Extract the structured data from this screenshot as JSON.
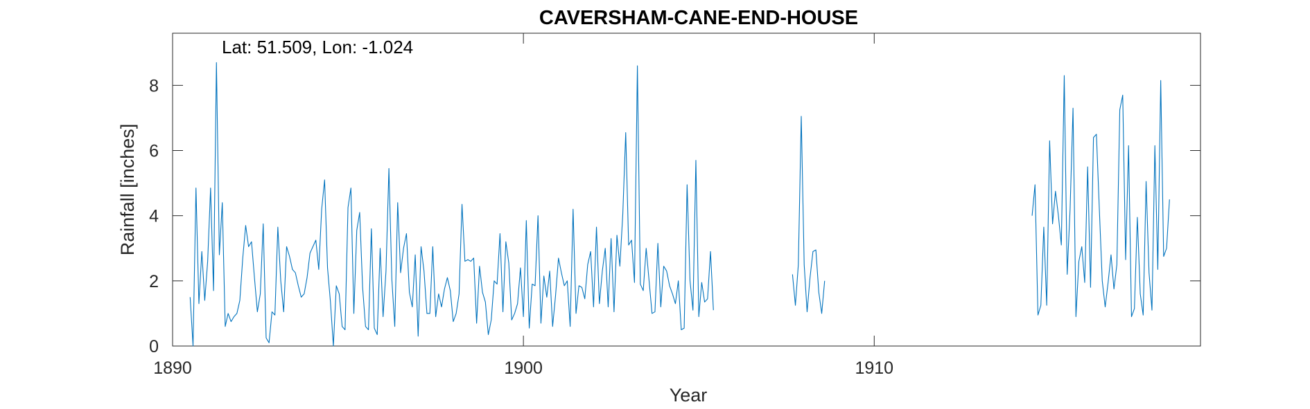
{
  "chart_data": {
    "type": "line",
    "title": "CAVERSHAM-CANE-END-HOUSE",
    "annotation": "Lat: 51.509, Lon: -1.024",
    "xlabel": "Year",
    "ylabel": "Rainfall [inches]",
    "xlim": [
      1890,
      1919.3
    ],
    "ylim": [
      0,
      9.6
    ],
    "xticks": [
      1890,
      1900,
      1910
    ],
    "yticks": [
      0,
      2,
      4,
      6,
      8
    ],
    "line_color": "#0072BD",
    "grid": false,
    "legend": "none",
    "series": [
      {
        "start_year": 1890.5,
        "step": 0.08333,
        "values": [
          1.5,
          0.0,
          4.85,
          1.3,
          2.9,
          1.4,
          2.6,
          4.85,
          1.7,
          8.7,
          2.8,
          4.4,
          0.6,
          1.0,
          0.75,
          0.9,
          1.0,
          1.4,
          2.7,
          3.7,
          3.05,
          3.2,
          2.1,
          1.05,
          1.6,
          3.75,
          0.25,
          0.1,
          1.05,
          0.95,
          3.65,
          2.0,
          1.05,
          3.05,
          2.75,
          2.35,
          2.25,
          1.85,
          1.5,
          1.6,
          2.1,
          2.85,
          3.05,
          3.25,
          2.35,
          4.2,
          5.1,
          2.4,
          1.35,
          0.0,
          1.85,
          1.6,
          0.6,
          0.5,
          4.25,
          4.85,
          1.0,
          3.55,
          4.1,
          1.8,
          0.6,
          0.5,
          3.6,
          0.55,
          0.35,
          3.0,
          0.9,
          2.3,
          5.45,
          2.05,
          0.6,
          4.4,
          2.25,
          3.0,
          3.45,
          1.65,
          1.2,
          2.8,
          0.3,
          3.05,
          2.3,
          1.0,
          1.0,
          3.05,
          0.9,
          1.6,
          1.2,
          1.75,
          2.1,
          1.7,
          0.75,
          1.0,
          1.6,
          4.35,
          2.6,
          2.65,
          2.6,
          2.7,
          0.7,
          2.45,
          1.65,
          1.35,
          0.35,
          0.8,
          2.0,
          1.9,
          3.45,
          1.05,
          3.2,
          2.55,
          0.8,
          1.0,
          1.3,
          2.4,
          0.9,
          3.85,
          0.55,
          1.9,
          1.85,
          4.0,
          0.7,
          2.15,
          1.5,
          2.3,
          0.6,
          1.55,
          2.7,
          2.25,
          1.85,
          2.0,
          0.6,
          4.2,
          1.0,
          1.85,
          1.8,
          1.45,
          2.5,
          2.9,
          1.2,
          3.65,
          1.3,
          2.3,
          3.0,
          1.2,
          3.3,
          1.05,
          3.4,
          2.45,
          4.05,
          6.55,
          3.1,
          3.25,
          1.95,
          8.6,
          1.9,
          1.7,
          3.0,
          2.0,
          1.0,
          1.05,
          3.15,
          1.2,
          2.45,
          2.3,
          1.85,
          1.6,
          1.3,
          2.0,
          0.5,
          0.55,
          4.95,
          2.0,
          1.1,
          5.7,
          0.9,
          1.95,
          1.35,
          1.45,
          2.9,
          1.1
        ]
      },
      {
        "start_year": 1907.67,
        "step": 0.08333,
        "values": [
          2.2,
          1.25,
          2.5,
          7.05,
          2.5,
          1.05,
          2.1,
          2.9,
          2.95,
          1.65,
          1.0,
          2.0
        ]
      },
      {
        "start_year": 1914.5,
        "step": 0.08333,
        "values": [
          4.0,
          4.95,
          0.95,
          1.25,
          3.65,
          1.25,
          6.3,
          3.75,
          4.75,
          4.0,
          3.1,
          8.3,
          2.2,
          4.2,
          7.3,
          0.9,
          2.6,
          3.05,
          1.95,
          5.5,
          1.8,
          6.4,
          6.5,
          4.2,
          2.0,
          1.2,
          1.95,
          2.8,
          1.75,
          2.5,
          7.25,
          7.7,
          2.65,
          6.15,
          0.9,
          1.15,
          3.95,
          1.6,
          0.95,
          5.05,
          2.25,
          1.1,
          6.15,
          2.35,
          8.15,
          2.75,
          3.0,
          4.5
        ]
      }
    ]
  }
}
